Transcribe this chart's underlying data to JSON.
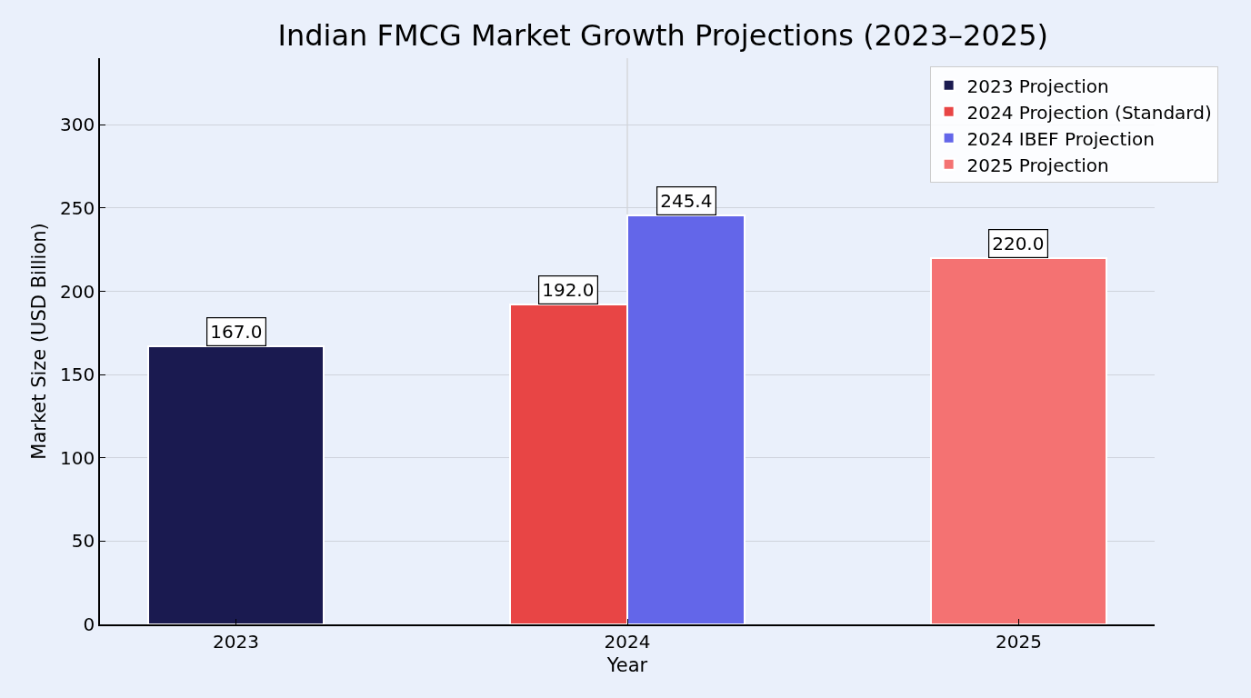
{
  "chart_data": {
    "type": "bar",
    "title": "Indian FMCG Market Growth Projections (2023–2025)",
    "xlabel": "Year",
    "ylabel": "Market Size (USD Billion)",
    "categories": [
      "2023",
      "2024",
      "2025"
    ],
    "series": [
      {
        "name": "2023 Projection",
        "color": "#1a1a50",
        "values": [
          167,
          null,
          null
        ],
        "value_labels": [
          "167.0",
          null,
          null
        ]
      },
      {
        "name": "2024 Projection (Standard)",
        "color": "#e84545",
        "values": [
          null,
          192,
          null
        ],
        "value_labels": [
          null,
          "192.0",
          null
        ]
      },
      {
        "name": "2024 IBEF Projection",
        "color": "#6366e9",
        "values": [
          null,
          245.4,
          null
        ],
        "value_labels": [
          null,
          "245.4",
          null
        ]
      },
      {
        "name": "2025 Projection",
        "color": "#f47272",
        "values": [
          null,
          null,
          220
        ],
        "value_labels": [
          null,
          null,
          "220.0"
        ]
      }
    ],
    "ylim": [
      0,
      340
    ],
    "yticks": [
      0,
      50,
      100,
      150,
      200,
      250,
      300
    ],
    "grid": "y",
    "legend": "top right",
    "ref_lines": [
      {
        "axis": "x",
        "value": "2024",
        "color": "#cccccc"
      }
    ]
  }
}
